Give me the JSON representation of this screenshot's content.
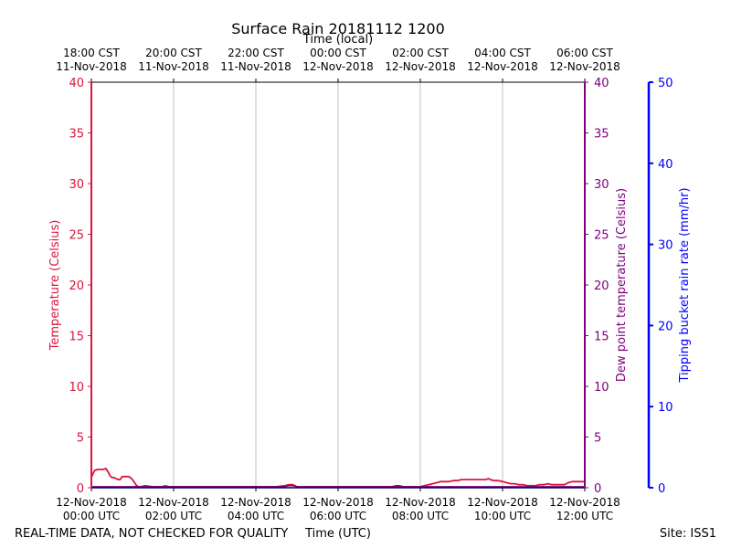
{
  "chart_data": {
    "type": "line",
    "title": "Surface Rain 20181112 1200",
    "top_xlabel": "Time (local)",
    "top_ticks": [
      {
        "line1": "18:00 CST",
        "line2": "11-Nov-2018",
        "hour": 0
      },
      {
        "line1": "20:00 CST",
        "line2": "11-Nov-2018",
        "hour": 2
      },
      {
        "line1": "22:00 CST",
        "line2": "11-Nov-2018",
        "hour": 4
      },
      {
        "line1": "00:00 CST",
        "line2": "12-Nov-2018",
        "hour": 6
      },
      {
        "line1": "02:00 CST",
        "line2": "12-Nov-2018",
        "hour": 8
      },
      {
        "line1": "04:00 CST",
        "line2": "12-Nov-2018",
        "hour": 10
      },
      {
        "line1": "06:00 CST",
        "line2": "12-Nov-2018",
        "hour": 12
      }
    ],
    "xlabel": "Time (UTC)",
    "bottom_ticks": [
      {
        "line1": "12-Nov-2018",
        "line2": "00:00 UTC",
        "hour": 0
      },
      {
        "line1": "12-Nov-2018",
        "line2": "02:00 UTC",
        "hour": 2
      },
      {
        "line1": "12-Nov-2018",
        "line2": "04:00 UTC",
        "hour": 4
      },
      {
        "line1": "12-Nov-2018",
        "line2": "06:00 UTC",
        "hour": 6
      },
      {
        "line1": "12-Nov-2018",
        "line2": "08:00 UTC",
        "hour": 8
      },
      {
        "line1": "12-Nov-2018",
        "line2": "10:00 UTC",
        "hour": 10
      },
      {
        "line1": "12-Nov-2018",
        "line2": "12:00 UTC",
        "hour": 12
      }
    ],
    "xlim": [
      0,
      12
    ],
    "grid": "vertical",
    "y_left": {
      "label": "Temperature (Celsius)",
      "range": [
        0,
        40
      ],
      "ticks": [
        "0",
        "5",
        "10",
        "15",
        "20",
        "25",
        "30",
        "35",
        "40"
      ],
      "color": "#dc143c"
    },
    "y_right_inner": {
      "label": "Dew point temperature (Celsius)",
      "range": [
        0,
        40
      ],
      "ticks": [
        "0",
        "5",
        "10",
        "15",
        "20",
        "25",
        "30",
        "35",
        "40"
      ],
      "color": "#800080"
    },
    "y_right_outer": {
      "label": "Tipping bucket rain rate (mm/hr)",
      "range": [
        0,
        50
      ],
      "ticks": [
        "0",
        "10",
        "20",
        "30",
        "40",
        "50"
      ],
      "color": "#0000ff"
    },
    "series": [
      {
        "axis": "left",
        "color": "#dc143c",
        "x": [
          0,
          0.03,
          0.08,
          0.15,
          0.25,
          0.3,
          0.35,
          0.4,
          0.45,
          0.5,
          0.55,
          0.6,
          0.65,
          0.7,
          0.75,
          0.8,
          0.85,
          0.9,
          0.95,
          1.0,
          1.05,
          1.1,
          1.15,
          1.2,
          1.3,
          1.5,
          1.8,
          2.5,
          3.0,
          3.5,
          4.0,
          4.5,
          4.7,
          4.8,
          4.9,
          5.0,
          5.5,
          6.0,
          6.5,
          7.0,
          7.5,
          7.8,
          8.0,
          8.1,
          8.2,
          8.3,
          8.4,
          8.5,
          8.6,
          8.7,
          8.8,
          8.9,
          9.0,
          9.1,
          9.2,
          9.3,
          9.4,
          9.5,
          9.6,
          9.65,
          9.7,
          9.8,
          9.9,
          10.0,
          10.1,
          10.2,
          10.3,
          10.4,
          10.5,
          10.6,
          10.7,
          10.8,
          10.9,
          11.0,
          11.1,
          11.2,
          11.3,
          11.4,
          11.5,
          11.6,
          11.7,
          11.8,
          11.9,
          12.0
        ],
        "y": [
          1.0,
          1.3,
          1.7,
          1.8,
          1.8,
          1.8,
          1.9,
          1.6,
          1.2,
          1.0,
          1.0,
          0.9,
          0.8,
          0.8,
          1.1,
          1.1,
          1.1,
          1.1,
          1.0,
          0.8,
          0.5,
          0.2,
          0.1,
          0.1,
          0.1,
          0.1,
          0.1,
          0.1,
          0.1,
          0.1,
          0.1,
          0.1,
          0.2,
          0.3,
          0.3,
          0.1,
          0.1,
          0.1,
          0.1,
          0.1,
          0.1,
          0.1,
          0.1,
          0.2,
          0.3,
          0.4,
          0.5,
          0.6,
          0.6,
          0.6,
          0.7,
          0.7,
          0.8,
          0.8,
          0.8,
          0.8,
          0.8,
          0.8,
          0.8,
          0.9,
          0.8,
          0.7,
          0.7,
          0.6,
          0.5,
          0.4,
          0.4,
          0.3,
          0.3,
          0.2,
          0.2,
          0.2,
          0.3,
          0.3,
          0.4,
          0.3,
          0.3,
          0.3,
          0.3,
          0.5,
          0.6,
          0.6,
          0.6,
          0.6
        ]
      },
      {
        "axis": "right_inner",
        "color": "#800080",
        "x": [
          0,
          0.5,
          0.8,
          0.9,
          1.0,
          1.1,
          1.2,
          1.3,
          1.5,
          1.6,
          1.7,
          1.8,
          1.9,
          2.5,
          3.0,
          3.5,
          4.0,
          4.5,
          4.7,
          4.8,
          4.9,
          5.0,
          5.5,
          6.0,
          6.5,
          7.0,
          7.2,
          7.3,
          7.4,
          7.5,
          7.6,
          7.8,
          8.0,
          8.5,
          9.0,
          9.5,
          10.0,
          10.5,
          11.0,
          11.5,
          12.0
        ],
        "y": [
          0.1,
          0.1,
          0.1,
          0.1,
          0.1,
          0.1,
          0.1,
          0.2,
          0.1,
          0.1,
          0.1,
          0.2,
          0.1,
          0.1,
          0.1,
          0.1,
          0.1,
          0.1,
          0.1,
          0.2,
          0.2,
          0.1,
          0.1,
          0.1,
          0.1,
          0.1,
          0.1,
          0.1,
          0.2,
          0.2,
          0.1,
          0.1,
          0.1,
          0.1,
          0.1,
          0.1,
          0.1,
          0.1,
          0.1,
          0.1,
          0.1
        ]
      },
      {
        "axis": "right_outer",
        "color": "#0000ff",
        "x": [
          0,
          12
        ],
        "y": [
          0,
          0
        ]
      }
    ]
  },
  "footer": {
    "note": "REAL-TIME DATA, NOT CHECKED FOR QUALITY",
    "site": "Site: ISS1"
  }
}
